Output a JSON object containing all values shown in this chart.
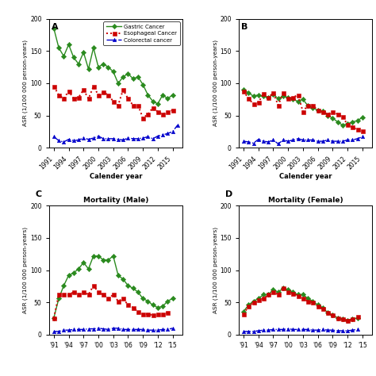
{
  "years": [
    1991,
    1992,
    1993,
    1994,
    1995,
    1996,
    1997,
    1998,
    1999,
    2000,
    2001,
    2002,
    2003,
    2004,
    2005,
    2006,
    2007,
    2008,
    2009,
    2010,
    2011,
    2012,
    2013,
    2014,
    2015,
    2016
  ],
  "panel_A": {
    "gastric": [
      185,
      155,
      142,
      160,
      140,
      130,
      148,
      122,
      155,
      125,
      130,
      125,
      118,
      100,
      110,
      115,
      107,
      110,
      98,
      82,
      72,
      68,
      82,
      76,
      82,
      null
    ],
    "esophageal": [
      95,
      82,
      76,
      88,
      76,
      78,
      90,
      76,
      95,
      82,
      86,
      82,
      72,
      66,
      90,
      76,
      66,
      66,
      46,
      52,
      62,
      56,
      52,
      56,
      58,
      null
    ],
    "colorectal": [
      17,
      11,
      9,
      13,
      11,
      12,
      15,
      13,
      15,
      18,
      14,
      14,
      14,
      13,
      12,
      15,
      14,
      14,
      15,
      17,
      14,
      18,
      20,
      22,
      25,
      35
    ]
  },
  "panel_B": {
    "gastric": [
      90,
      85,
      80,
      82,
      80,
      78,
      83,
      76,
      80,
      78,
      75,
      72,
      75,
      65,
      62,
      58,
      57,
      50,
      46,
      40,
      35,
      37,
      40,
      42,
      47,
      null
    ],
    "esophageal": [
      88,
      76,
      68,
      70,
      84,
      78,
      85,
      66,
      85,
      76,
      78,
      82,
      56,
      66,
      66,
      58,
      56,
      52,
      56,
      52,
      48,
      36,
      32,
      28,
      26,
      null
    ],
    "colorectal": [
      10,
      9,
      7,
      13,
      10,
      9,
      12,
      6,
      12,
      10,
      12,
      14,
      12,
      12,
      12,
      10,
      10,
      12,
      10,
      10,
      10,
      12,
      12,
      14,
      17,
      null
    ]
  },
  "panel_C": {
    "gastric": [
      26,
      56,
      76,
      92,
      96,
      102,
      112,
      102,
      122,
      122,
      116,
      116,
      122,
      92,
      86,
      76,
      72,
      66,
      56,
      52,
      46,
      42,
      44,
      52,
      56,
      null
    ],
    "esophageal": [
      26,
      62,
      62,
      62,
      66,
      62,
      66,
      62,
      76,
      66,
      62,
      56,
      62,
      52,
      56,
      46,
      42,
      36,
      32,
      32,
      30,
      32,
      32,
      34,
      null,
      null
    ],
    "colorectal": [
      5,
      5,
      7,
      7,
      8,
      8,
      8,
      9,
      9,
      10,
      9,
      8,
      10,
      10,
      8,
      8,
      8,
      8,
      8,
      7,
      7,
      7,
      8,
      8,
      10,
      null
    ]
  },
  "panel_D": {
    "gastric": [
      36,
      46,
      52,
      56,
      62,
      62,
      70,
      66,
      72,
      70,
      66,
      62,
      62,
      56,
      52,
      46,
      42,
      34,
      30,
      26,
      24,
      22,
      24,
      26,
      null,
      null
    ],
    "esophageal": [
      32,
      44,
      50,
      54,
      56,
      62,
      66,
      62,
      72,
      66,
      64,
      60,
      56,
      52,
      50,
      44,
      40,
      34,
      30,
      26,
      24,
      22,
      24,
      28,
      null,
      null
    ],
    "colorectal": [
      5,
      5,
      5,
      6,
      7,
      7,
      8,
      8,
      8,
      9,
      8,
      8,
      8,
      8,
      7,
      7,
      8,
      7,
      7,
      6,
      6,
      6,
      7,
      8,
      null,
      null
    ]
  },
  "colors": {
    "gastric": "#2a8a1e",
    "esophageal": "#cc0000",
    "colorectal": "#0000cc"
  },
  "xlabel": "Calender year",
  "ylabel": "ASR (1/100 000 person-years)",
  "xtick_vals": [
    1991,
    1994,
    1997,
    2000,
    2003,
    2006,
    2009,
    2012,
    2015
  ],
  "xtick_labels_full": [
    "1991",
    "1994",
    "1997",
    "2000",
    "2003",
    "2006",
    "2009",
    "2012",
    "2015"
  ],
  "xtick_labels_short": [
    "'91",
    "'94",
    "'97",
    "'00",
    "'03",
    "'06",
    "'09",
    "'12",
    "'15"
  ],
  "ylim": [
    0,
    200
  ],
  "yticks": [
    0,
    50,
    100,
    150,
    200
  ],
  "legend_labels": [
    "Gastric Cancer",
    "Esophageal Cancer",
    "Colorectal cancer"
  ]
}
